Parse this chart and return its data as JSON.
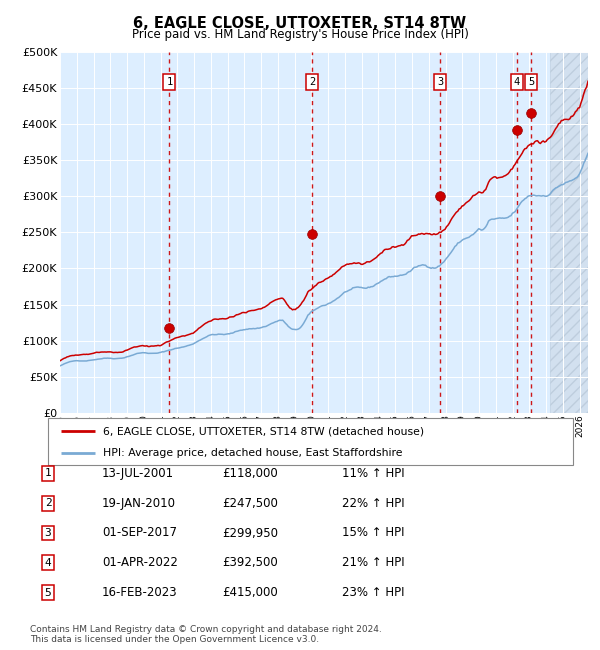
{
  "title": "6, EAGLE CLOSE, UTTOXETER, ST14 8TW",
  "subtitle": "Price paid vs. HM Land Registry's House Price Index (HPI)",
  "legend_line1": "6, EAGLE CLOSE, UTTOXETER, ST14 8TW (detached house)",
  "legend_line2": "HPI: Average price, detached house, East Staffordshire",
  "footer1": "Contains HM Land Registry data © Crown copyright and database right 2024.",
  "footer2": "This data is licensed under the Open Government Licence v3.0.",
  "hpi_color": "#7aaad4",
  "price_color": "#cc0000",
  "bg_color": "#ddeeff",
  "ylim": [
    0,
    500000
  ],
  "yticks": [
    0,
    50000,
    100000,
    150000,
    200000,
    250000,
    300000,
    350000,
    400000,
    450000,
    500000
  ],
  "sales": [
    {
      "num": 1,
      "date_label": "13-JUL-2001",
      "price": 118000,
      "pct": "11%",
      "x_year": 2001.53
    },
    {
      "num": 2,
      "date_label": "19-JAN-2010",
      "price": 247500,
      "pct": "22%",
      "x_year": 2010.05
    },
    {
      "num": 3,
      "date_label": "01-SEP-2017",
      "price": 299950,
      "pct": "15%",
      "x_year": 2017.67
    },
    {
      "num": 4,
      "date_label": "01-APR-2022",
      "price": 392500,
      "pct": "21%",
      "x_year": 2022.25
    },
    {
      "num": 5,
      "date_label": "16-FEB-2023",
      "price": 415000,
      "pct": "23%",
      "x_year": 2023.12
    }
  ],
  "xmin": 1995.0,
  "xmax": 2026.5
}
